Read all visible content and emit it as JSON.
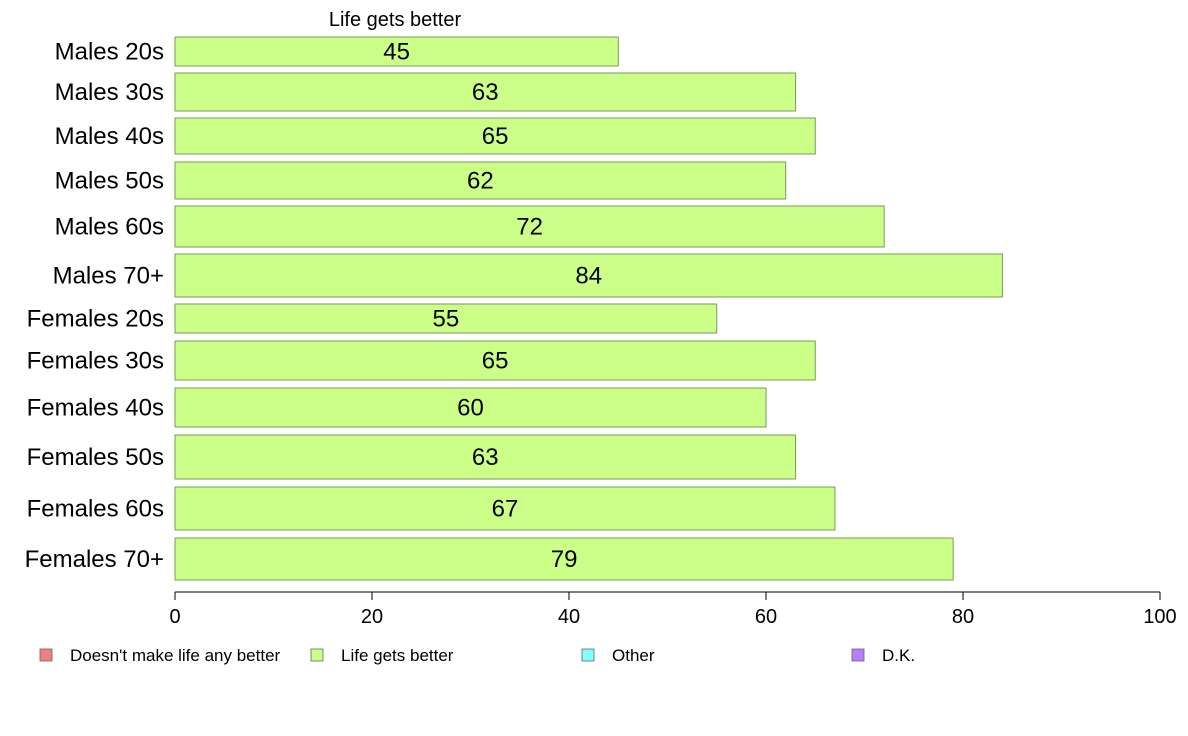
{
  "chart_data": {
    "type": "bar",
    "orientation": "horizontal",
    "series_title": "Life gets better",
    "categories": [
      "Males 20s",
      "Males 30s",
      "Males 40s",
      "Males 50s",
      "Males 60s",
      "Males 70+",
      "Females 20s",
      "Females 30s",
      "Females 40s",
      "Females 50s",
      "Females 60s",
      "Females 70+"
    ],
    "series": [
      {
        "name": "Life gets better",
        "color": "#ccff88",
        "values": [
          45,
          63,
          65,
          62,
          72,
          84,
          55,
          65,
          60,
          63,
          67,
          79
        ]
      }
    ],
    "xlim": [
      0,
      100
    ],
    "xticks": [
      "0",
      "20",
      "40",
      "60",
      "80",
      "100"
    ],
    "xlabel": "",
    "ylabel": "",
    "grid": false,
    "legend_position": "bottom",
    "legend": [
      {
        "label": "Doesn't make life any better",
        "color": "#f08080"
      },
      {
        "label": "Life gets better",
        "color": "#ccff88"
      },
      {
        "label": "Other",
        "color": "#80ffff"
      },
      {
        "label": "D.K.",
        "color": "#b380ff"
      }
    ]
  }
}
